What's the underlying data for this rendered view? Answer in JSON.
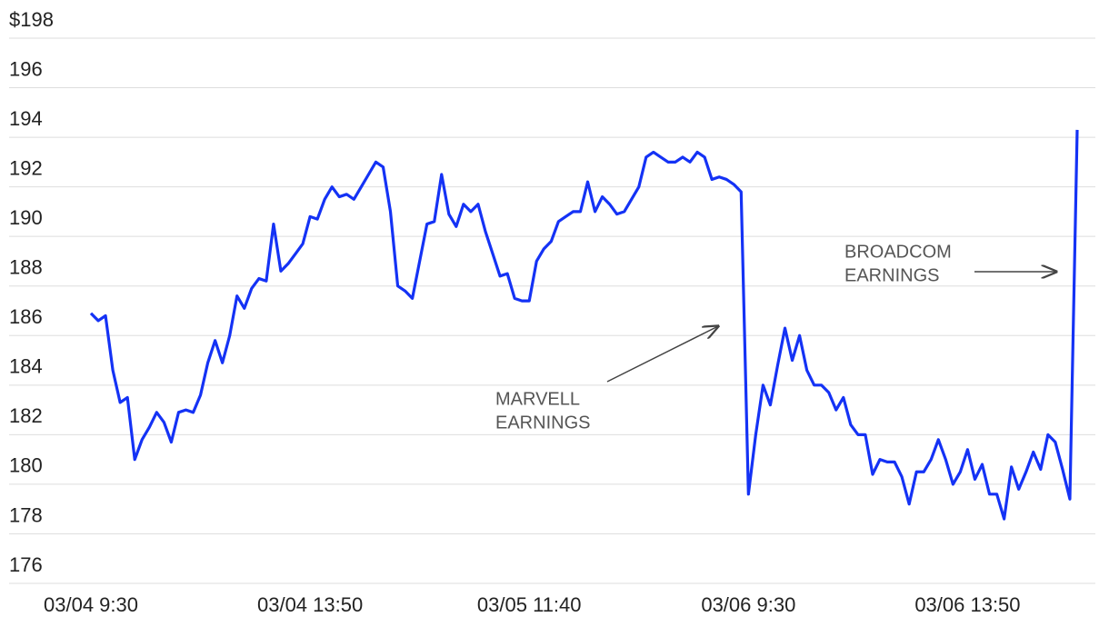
{
  "chart_data": {
    "type": "line",
    "categories": [
      "03/04 9:30",
      null,
      null,
      null,
      null,
      null,
      null,
      null,
      null,
      null,
      null,
      null,
      null,
      null,
      null,
      null,
      null,
      null,
      null,
      null,
      null,
      null,
      null,
      null,
      null,
      null,
      null,
      null,
      null,
      null,
      "03/04 13:50",
      null,
      null,
      null,
      null,
      null,
      null,
      null,
      null,
      null,
      null,
      null,
      null,
      null,
      null,
      null,
      null,
      null,
      null,
      null,
      null,
      null,
      null,
      null,
      null,
      null,
      null,
      null,
      null,
      null,
      "03/05 11:40",
      null,
      null,
      null,
      null,
      null,
      null,
      null,
      null,
      null,
      null,
      null,
      null,
      null,
      null,
      null,
      null,
      null,
      null,
      null,
      null,
      null,
      null,
      null,
      null,
      null,
      null,
      null,
      null,
      null,
      "03/06 9:30",
      null,
      null,
      null,
      null,
      null,
      null,
      null,
      null,
      null,
      null,
      null,
      null,
      null,
      null,
      null,
      null,
      null,
      null,
      null,
      null,
      null,
      null,
      null,
      null,
      null,
      null,
      null,
      null,
      null,
      "03/06 13:50",
      null,
      null,
      null,
      null,
      null,
      null,
      null,
      null,
      null,
      null,
      null,
      null,
      null,
      null,
      null
    ],
    "values": [
      186.9,
      186.6,
      186.8,
      184.6,
      183.3,
      183.5,
      181.0,
      181.8,
      182.3,
      182.9,
      182.5,
      181.7,
      182.9,
      183.0,
      182.9,
      183.6,
      184.9,
      185.8,
      184.9,
      186.0,
      187.6,
      187.1,
      187.9,
      188.3,
      188.2,
      190.5,
      188.6,
      188.9,
      189.3,
      189.7,
      190.8,
      190.7,
      191.5,
      192.0,
      191.6,
      191.7,
      191.5,
      192.0,
      192.5,
      193.0,
      192.8,
      191.0,
      188.0,
      187.8,
      187.5,
      189.0,
      190.5,
      190.6,
      192.5,
      190.9,
      190.4,
      191.3,
      191.0,
      191.3,
      190.2,
      189.3,
      188.4,
      188.5,
      187.5,
      187.4,
      187.4,
      189.0,
      189.5,
      189.8,
      190.6,
      190.8,
      191.0,
      191.0,
      192.2,
      191.0,
      191.6,
      191.3,
      190.9,
      191.0,
      191.5,
      192.0,
      193.2,
      193.4,
      193.2,
      193.0,
      193.0,
      193.2,
      193.0,
      193.4,
      193.2,
      192.3,
      192.4,
      192.3,
      192.1,
      191.8,
      179.6,
      182.0,
      184.0,
      183.2,
      184.8,
      186.3,
      185.0,
      186.0,
      184.6,
      184.0,
      184.0,
      183.7,
      183.0,
      183.5,
      182.4,
      182.0,
      182.0,
      180.4,
      181.0,
      180.9,
      180.9,
      180.3,
      179.2,
      180.5,
      180.5,
      181.0,
      181.8,
      181.0,
      180.0,
      180.5,
      181.4,
      180.2,
      180.8,
      179.6,
      179.6,
      178.6,
      180.7,
      179.8,
      180.5,
      181.3,
      180.6,
      182.0,
      181.7,
      180.6,
      179.4,
      194.3
    ],
    "color": "#1432f5",
    "ylim": [
      176,
      198
    ],
    "yticks": [
      176,
      178,
      180,
      182,
      184,
      186,
      188,
      190,
      192,
      194,
      196,
      {
        "value": 198,
        "label": "$198"
      }
    ],
    "grid": true,
    "annotations": [
      {
        "text": [
          "MARVELL",
          "EARNINGS"
        ]
      },
      {
        "text": [
          "BROADCOM",
          "EARNINGS"
        ]
      }
    ]
  }
}
